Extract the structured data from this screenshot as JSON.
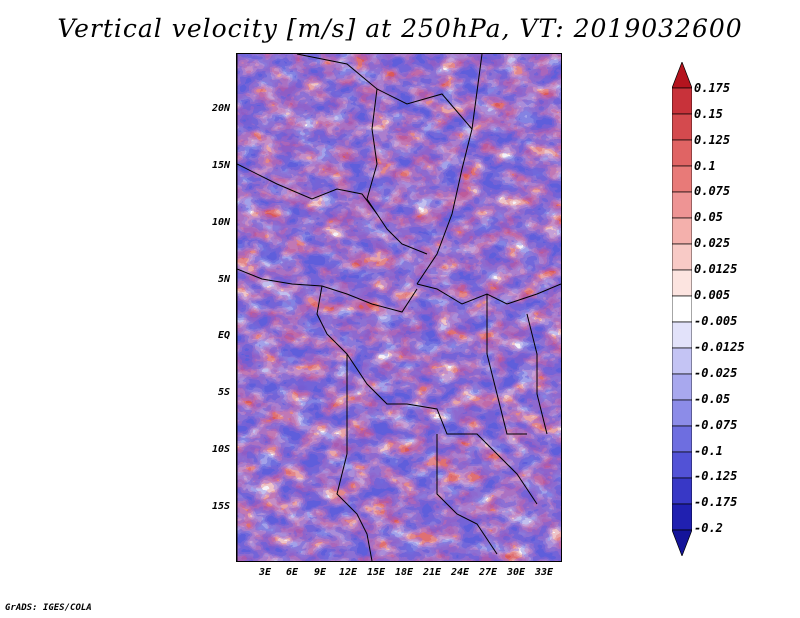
{
  "title": "Vertical velocity [m/s] at 250hPa, VT: 2019032600",
  "credit": "GrADS: IGES/COLA",
  "map": {
    "lat_labels": [
      "20N",
      "15N",
      "10N",
      "5N",
      "EQ",
      "5S",
      "10S",
      "15S"
    ],
    "lon_labels": [
      "3E",
      "6E",
      "9E",
      "12E",
      "15E",
      "18E",
      "21E",
      "24E",
      "27E",
      "30E",
      "33E"
    ]
  },
  "colorbar": {
    "levels": [
      "0.175",
      "0.15",
      "0.125",
      "0.1",
      "0.075",
      "0.05",
      "0.025",
      "0.0125",
      "0.005",
      "-0.005",
      "-0.0125",
      "-0.025",
      "-0.05",
      "-0.075",
      "-0.1",
      "-0.125",
      "-0.175",
      "-0.2"
    ],
    "colors": [
      "#b4141e",
      "#c8323a",
      "#d44a4e",
      "#e06464",
      "#e87a78",
      "#ee9494",
      "#f4b0ac",
      "#f8cac6",
      "#fce4e0",
      "#ffffff",
      "#e2e2fa",
      "#c4c4f4",
      "#a8a8ee",
      "#8c8ce8",
      "#6e6ee0",
      "#5252d6",
      "#3838c6",
      "#2020b0",
      "#14149a"
    ]
  },
  "colors": {
    "positive": "#d04040",
    "negative": "#4444cc",
    "neutral": "#ffffff"
  }
}
